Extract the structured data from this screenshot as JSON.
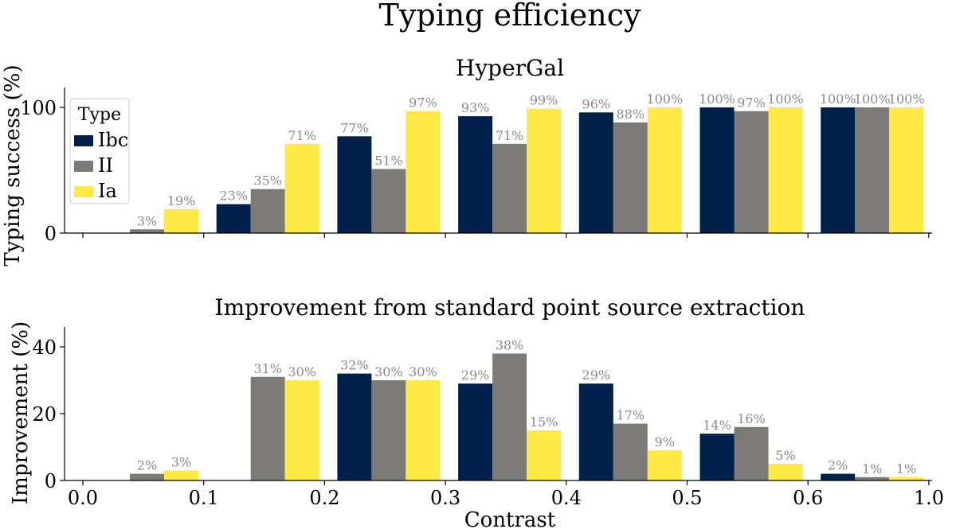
{
  "figure": {
    "title": "Typing efficiency",
    "xlabel": "Contrast",
    "xticks": [
      "0.0",
      "0.1",
      "0.2",
      "0.3",
      "0.4",
      "0.5",
      "0.6",
      "1.0"
    ]
  },
  "colors": {
    "Ibc": "#00204c",
    "II": "#7c7b78",
    "Ia": "#ffe945",
    "label": "#8a8a8a"
  },
  "chart_data": [
    {
      "type": "bar",
      "title": "HyperGal",
      "ylabel": "Typing success (%)",
      "ylim": [
        0,
        100
      ],
      "yticks": [
        "0",
        "100"
      ],
      "legend": {
        "title": "Type",
        "position": "top-left"
      },
      "categories": [
        "0.0–0.1",
        "0.1–0.2",
        "0.2–0.3",
        "0.3–0.4",
        "0.4–0.5",
        "0.5–0.6",
        "0.6–1.0"
      ],
      "series": [
        {
          "name": "Ibc",
          "values": [
            0,
            23,
            77,
            93,
            96,
            100,
            100
          ],
          "labels": [
            "",
            "23%",
            "77%",
            "93%",
            "96%",
            "100%",
            "100%"
          ]
        },
        {
          "name": "II",
          "values": [
            3,
            35,
            51,
            71,
            88,
            97,
            100
          ],
          "labels": [
            "3%",
            "35%",
            "51%",
            "71%",
            "88%",
            "97%",
            "100%"
          ]
        },
        {
          "name": "Ia",
          "values": [
            19,
            71,
            97,
            99,
            100,
            100,
            100
          ],
          "labels": [
            "19%",
            "71%",
            "97%",
            "99%",
            "100%",
            "100%",
            "100%"
          ]
        }
      ]
    },
    {
      "type": "bar",
      "title": "Improvement from standard point source extraction",
      "ylabel": "Improvement (%)",
      "ylim": [
        0,
        40
      ],
      "yticks": [
        "0",
        "20",
        "40"
      ],
      "categories": [
        "0.0–0.1",
        "0.1–0.2",
        "0.2–0.3",
        "0.3–0.4",
        "0.4–0.5",
        "0.5–0.6",
        "0.6–1.0"
      ],
      "series": [
        {
          "name": "Ibc",
          "values": [
            0,
            0,
            32,
            29,
            29,
            14,
            2
          ],
          "labels": [
            "",
            "",
            "32%",
            "29%",
            "29%",
            "14%",
            "2%"
          ]
        },
        {
          "name": "II",
          "values": [
            2,
            31,
            30,
            38,
            17,
            16,
            1
          ],
          "labels": [
            "2%",
            "31%",
            "30%",
            "38%",
            "17%",
            "16%",
            "1%"
          ]
        },
        {
          "name": "Ia",
          "values": [
            3,
            30,
            30,
            15,
            9,
            5,
            1
          ],
          "labels": [
            "3%",
            "30%",
            "30%",
            "15%",
            "9%",
            "5%",
            "1%"
          ]
        }
      ]
    }
  ]
}
